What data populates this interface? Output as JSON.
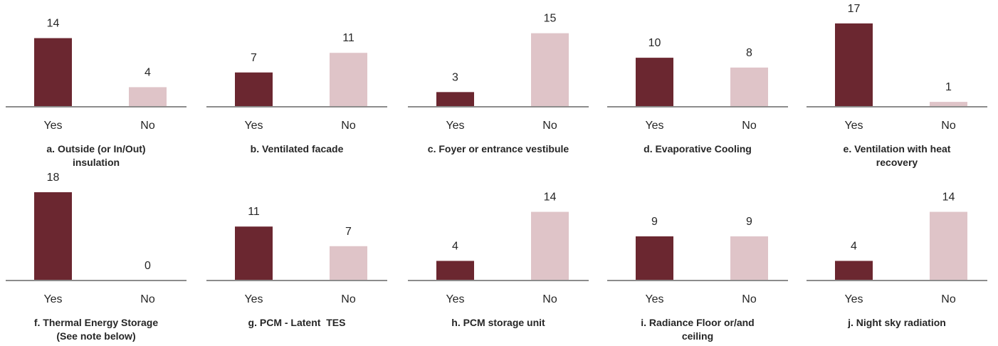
{
  "palette": {
    "Yes": "#6b2730",
    "No": "#dfc4c8",
    "axis": "#8c8c8c",
    "text": "#262626"
  },
  "chart_data": [
    {
      "type": "bar",
      "title_lines": [
        "a. Outside (or In/Out)",
        "insulation"
      ],
      "categories": [
        "Yes",
        "No"
      ],
      "values": [
        14,
        4
      ],
      "ylim": [
        0,
        18
      ],
      "grid": false
    },
    {
      "type": "bar",
      "title_lines": [
        "b. Ventilated facade"
      ],
      "categories": [
        "Yes",
        "No"
      ],
      "values": [
        7,
        11
      ],
      "ylim": [
        0,
        18
      ],
      "grid": false
    },
    {
      "type": "bar",
      "title_lines": [
        "c. Foyer or entrance vestibule"
      ],
      "categories": [
        "Yes",
        "No"
      ],
      "values": [
        3,
        15
      ],
      "ylim": [
        0,
        18
      ],
      "grid": false
    },
    {
      "type": "bar",
      "title_lines": [
        "d. Evaporative Cooling"
      ],
      "categories": [
        "Yes",
        "No"
      ],
      "values": [
        10,
        8
      ],
      "ylim": [
        0,
        18
      ],
      "grid": false
    },
    {
      "type": "bar",
      "title_lines": [
        "e. Ventilation with heat",
        "recovery"
      ],
      "categories": [
        "Yes",
        "No"
      ],
      "values": [
        17,
        1
      ],
      "ylim": [
        0,
        18
      ],
      "grid": false
    },
    {
      "type": "bar",
      "title_lines": [
        "f. Thermal Energy Storage",
        "(See note below)"
      ],
      "categories": [
        "Yes",
        "No"
      ],
      "values": [
        18,
        0
      ],
      "ylim": [
        0,
        18
      ],
      "grid": false
    },
    {
      "type": "bar",
      "title_lines": [
        "g. PCM - Latent  TES"
      ],
      "categories": [
        "Yes",
        "No"
      ],
      "values": [
        11,
        7
      ],
      "ylim": [
        0,
        18
      ],
      "grid": false
    },
    {
      "type": "bar",
      "title_lines": [
        "h. PCM storage unit"
      ],
      "categories": [
        "Yes",
        "No"
      ],
      "values": [
        4,
        14
      ],
      "ylim": [
        0,
        18
      ],
      "grid": false
    },
    {
      "type": "bar",
      "title_lines": [
        "i. Radiance Floor or/and",
        "ceiling"
      ],
      "categories": [
        "Yes",
        "No"
      ],
      "values": [
        9,
        9
      ],
      "ylim": [
        0,
        18
      ],
      "grid": false
    },
    {
      "type": "bar",
      "title_lines": [
        "j. Night sky radiation"
      ],
      "categories": [
        "Yes",
        "No"
      ],
      "values": [
        4,
        14
      ],
      "ylim": [
        0,
        18
      ],
      "grid": false
    }
  ]
}
